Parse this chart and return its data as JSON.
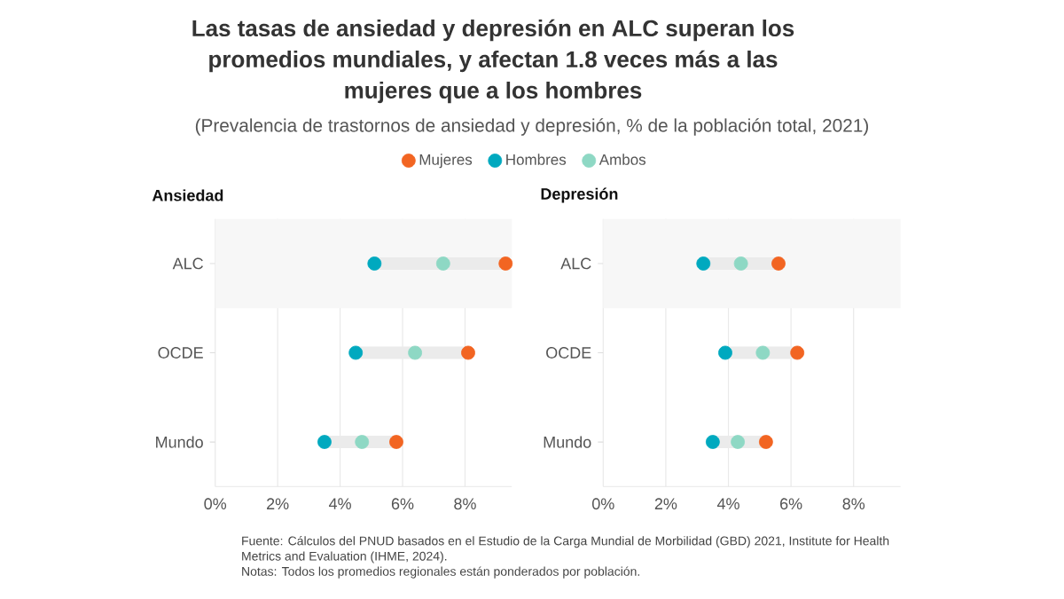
{
  "chart_data": [
    {
      "type": "other",
      "title": "Las tasas de ansiedad y depresión en ALC superan los promedios mundiales, y afectan 1.8 veces más a las mujeres que a los hombres",
      "subtitle": "(Prevalencia de trastornos de ansiedad y depresión, % de la población total, 2021)",
      "annotations": [
        "Fuente: Cálculos del PNUD basados en el Estudio de la Carga Mundial de Morbilidad (GBD) 2021, Institute for Health Metrics and Evaluation (IHME, 2024).",
        "Notas: Todos los promedios regionales están ponderados por población."
      ]
    },
    {
      "type": "scatter",
      "title": "Ansiedad",
      "orientation": "horizontal",
      "categories": [
        "ALC",
        "OCDE",
        "Mundo"
      ],
      "series": [
        {
          "name": "Mujeres",
          "color": "#f26522",
          "values": [
            9.3,
            8.1,
            5.8
          ]
        },
        {
          "name": "Hombres",
          "color": "#00a9bf",
          "values": [
            5.1,
            4.5,
            3.5
          ]
        },
        {
          "name": "Ambos",
          "color": "#8ed8c4",
          "values": [
            7.3,
            6.4,
            4.7
          ]
        }
      ],
      "xlim": [
        0,
        9.5
      ],
      "xticks": [
        {
          "value": 0,
          "label": "0%"
        },
        {
          "value": 2,
          "label": "2%"
        },
        {
          "value": 4,
          "label": "4%"
        },
        {
          "value": 6,
          "label": "6%"
        },
        {
          "value": 8,
          "label": "8%"
        }
      ],
      "grid": "x",
      "legend": "top",
      "marker": "circle",
      "bands": [
        {
          "axis": "y",
          "from": "ALC",
          "to": "ALC",
          "color": "#f7f7f7"
        }
      ]
    },
    {
      "type": "scatter",
      "title": "Depresión",
      "orientation": "horizontal",
      "categories": [
        "ALC",
        "OCDE",
        "Mundo"
      ],
      "series": [
        {
          "color": "#f26522",
          "values": [
            5.6,
            6.2,
            5.2
          ]
        },
        {
          "color": "#00a9bf",
          "values": [
            3.2,
            3.9,
            3.5
          ]
        },
        {
          "color": "#8ed8c4",
          "values": [
            4.4,
            5.1,
            4.3
          ]
        }
      ],
      "xlim": [
        0,
        9.5
      ],
      "xticks": [
        {
          "value": 0,
          "label": "0%"
        },
        {
          "value": 2,
          "label": "2%"
        },
        {
          "value": 4,
          "label": "4%"
        },
        {
          "value": 6,
          "label": "6%"
        },
        {
          "value": 8,
          "label": "8%"
        }
      ],
      "grid": "x",
      "marker": "circle",
      "bands": [
        {
          "axis": "y",
          "from": "ALC",
          "to": "ALC",
          "color": "#f7f7f7"
        }
      ]
    }
  ]
}
